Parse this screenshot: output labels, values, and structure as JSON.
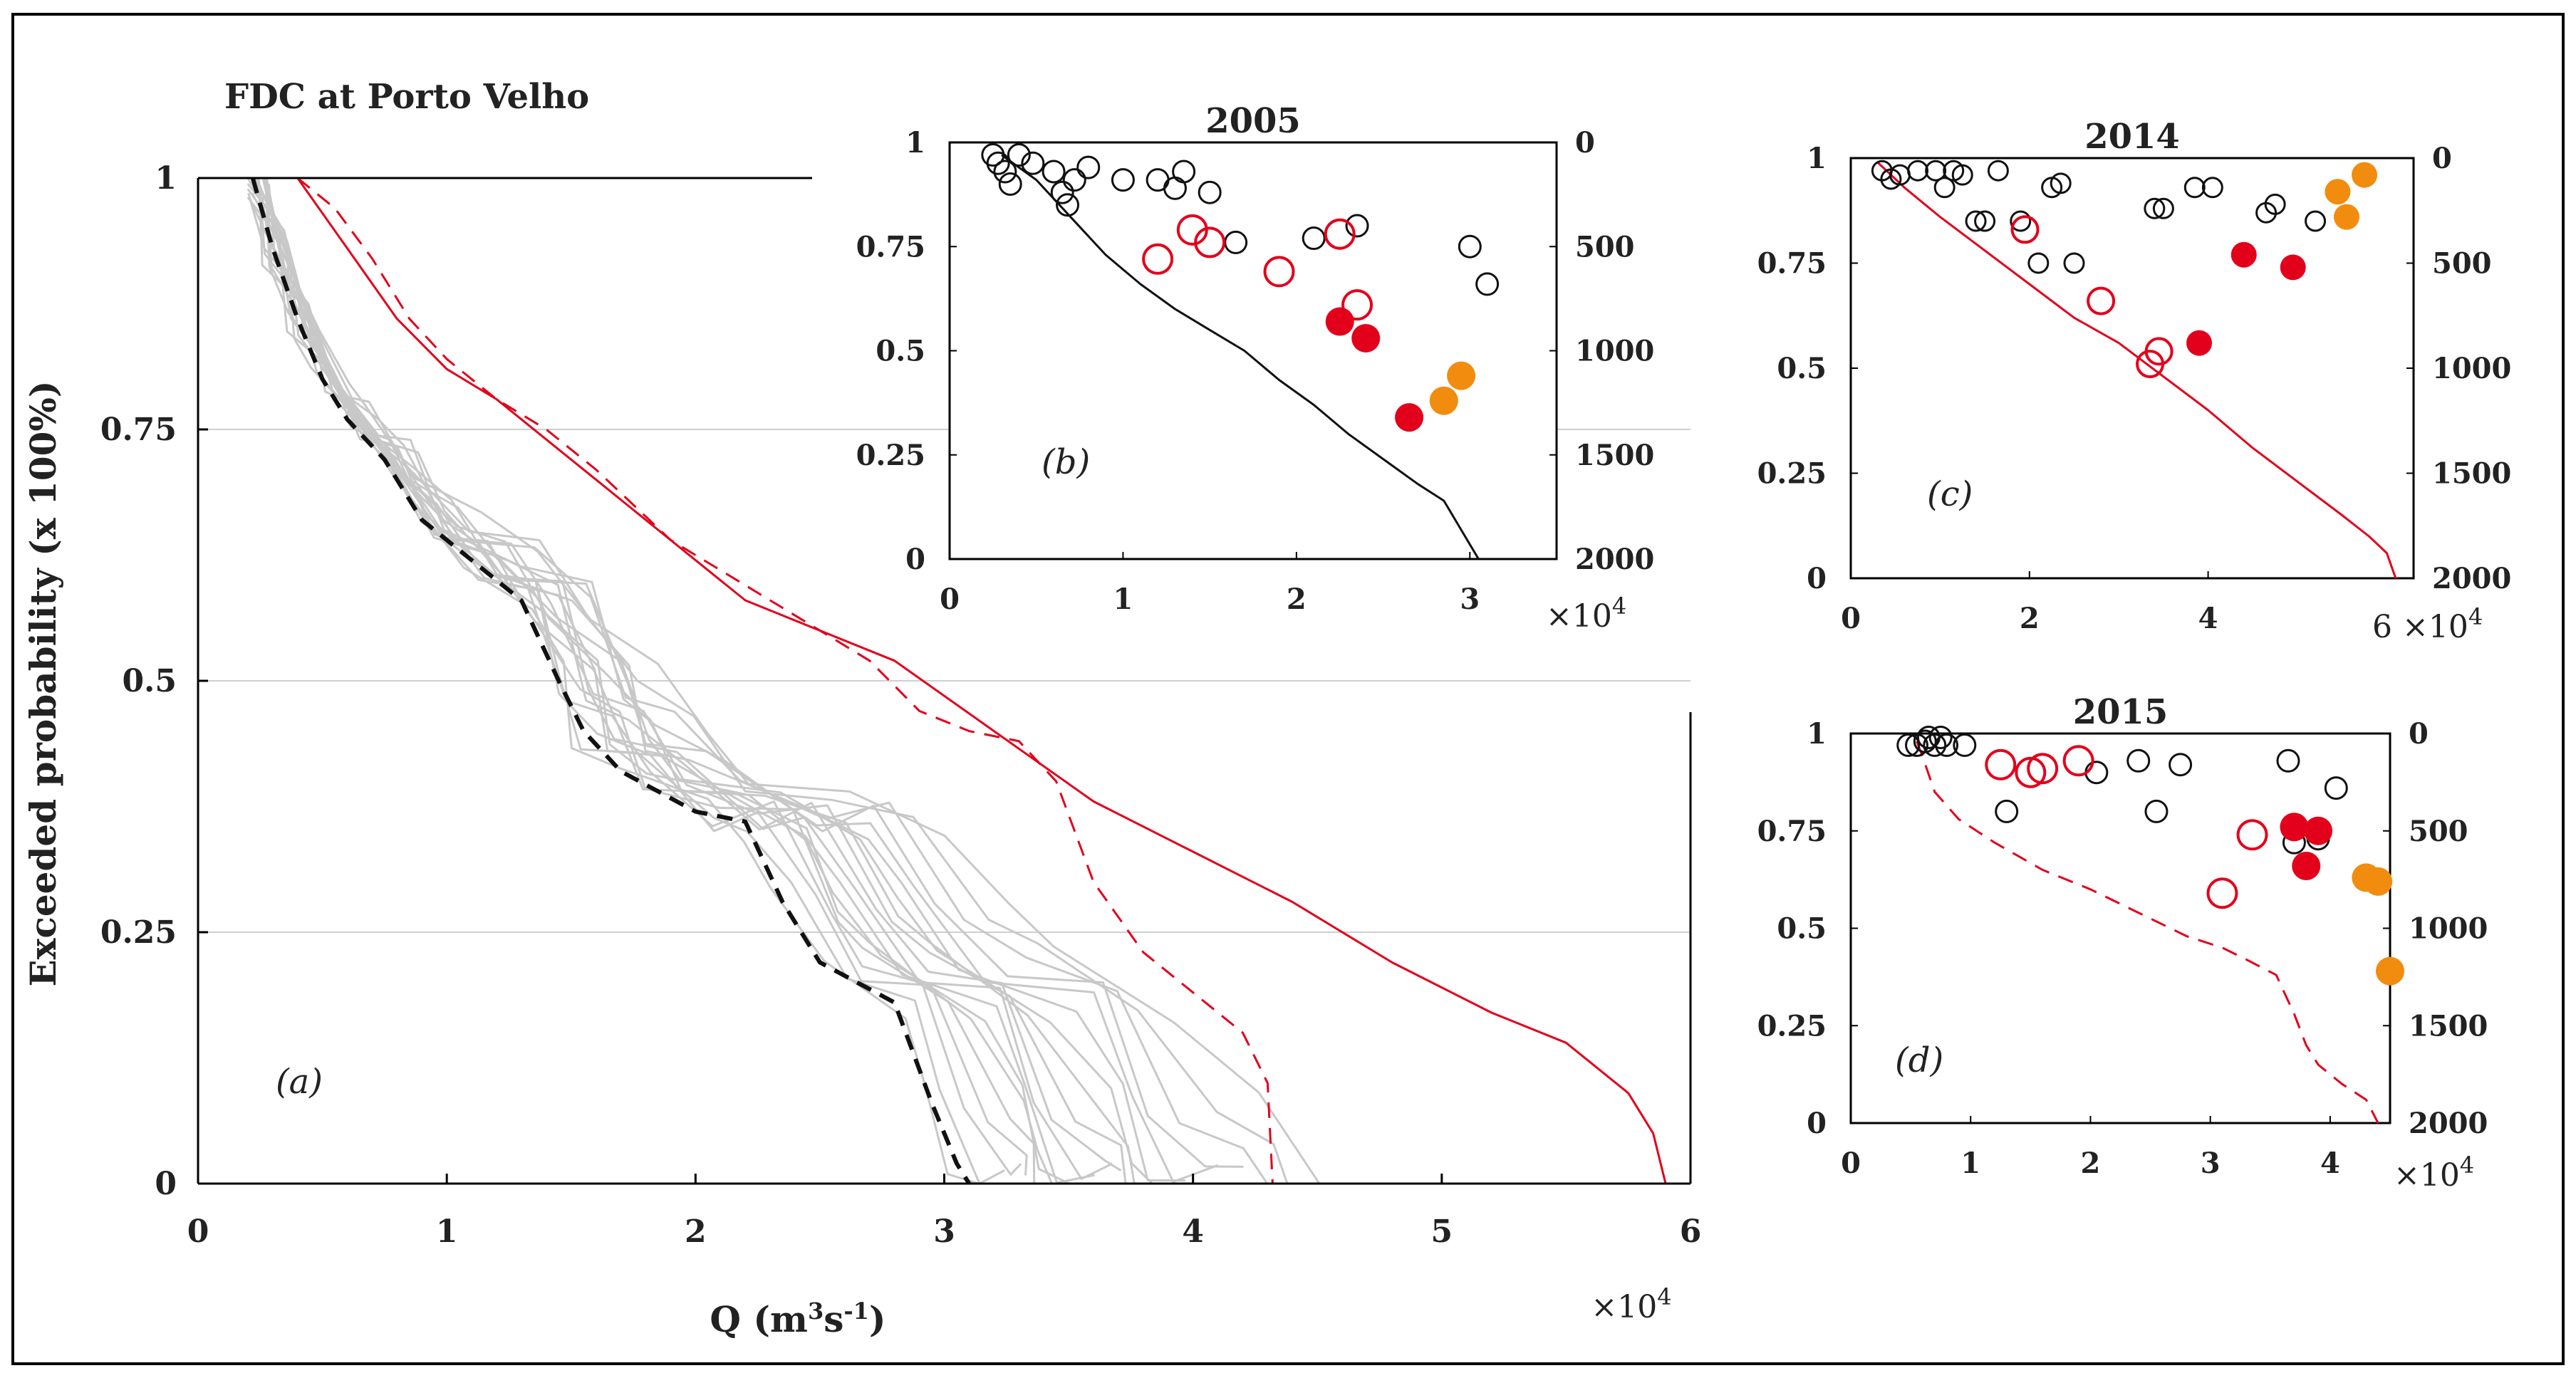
{
  "figure": {
    "title": "FDC at Porto Velho",
    "ylabel": "Exceeded probability (x 100%)",
    "xlabel_main": "Q (m",
    "xlabel_sup1": "3",
    "xlabel_mid": "s",
    "xlabel_sup2": "-1",
    "xlabel_end": ")"
  },
  "colors": {
    "red": "#e3001b",
    "orange": "#f28c0f",
    "gray": "#c8c8c8",
    "black": "#111111"
  },
  "chart_data": [
    {
      "id": "a",
      "type": "line",
      "panel_label": "(a)",
      "xlim": [
        0,
        6
      ],
      "ylim": [
        0,
        1
      ],
      "x_multiplier": "×10",
      "x_multiplier_exp": "4",
      "x_ticks": [
        0,
        1,
        2,
        3,
        4,
        5,
        6
      ],
      "x_tick_labels": [
        "0",
        "1",
        "2",
        "3",
        "4",
        "5",
        "6"
      ],
      "y_ticks": [
        0,
        0.25,
        0.5,
        0.75,
        1
      ],
      "y_tick_labels": [
        "0",
        "0.25",
        "0.5",
        "0.75",
        "1"
      ],
      "hgrid": [
        0.25,
        0.5,
        0.75
      ],
      "series": [
        {
          "name": "red-solid",
          "style": "solid",
          "color": "red",
          "x": [
            0.4,
            0.6,
            0.8,
            1.0,
            1.2,
            1.4,
            1.6,
            1.8,
            2.0,
            2.2,
            2.5,
            2.8,
            3.2,
            3.6,
            4.0,
            4.4,
            4.8,
            5.2,
            5.5,
            5.75,
            5.85,
            5.9
          ],
          "y": [
            1.0,
            0.93,
            0.86,
            0.81,
            0.78,
            0.74,
            0.7,
            0.66,
            0.62,
            0.58,
            0.55,
            0.52,
            0.45,
            0.38,
            0.33,
            0.28,
            0.22,
            0.17,
            0.14,
            0.09,
            0.05,
            0.0
          ]
        },
        {
          "name": "red-dashed",
          "style": "dashed",
          "color": "red",
          "x": [
            0.4,
            0.55,
            0.7,
            0.85,
            1.0,
            1.2,
            1.4,
            1.6,
            1.9,
            2.3,
            2.7,
            2.9,
            3.1,
            3.3,
            3.45,
            3.6,
            3.8,
            4.0,
            4.2,
            4.3,
            4.32
          ],
          "y": [
            1.0,
            0.97,
            0.92,
            0.86,
            0.82,
            0.78,
            0.75,
            0.71,
            0.64,
            0.58,
            0.52,
            0.47,
            0.45,
            0.44,
            0.4,
            0.3,
            0.23,
            0.19,
            0.15,
            0.1,
            0.0
          ]
        },
        {
          "name": "black-dashed",
          "style": "dashed",
          "color": "black",
          "x": [
            0.22,
            0.3,
            0.4,
            0.5,
            0.6,
            0.75,
            0.9,
            1.1,
            1.3,
            1.45,
            1.55,
            1.7,
            2.0,
            2.2,
            2.35,
            2.5,
            2.8,
            2.95,
            3.05,
            3.1
          ],
          "y": [
            1.0,
            0.93,
            0.86,
            0.8,
            0.76,
            0.72,
            0.66,
            0.62,
            0.58,
            0.5,
            0.45,
            0.41,
            0.37,
            0.36,
            0.28,
            0.22,
            0.18,
            0.08,
            0.02,
            0.0
          ]
        }
      ]
    },
    {
      "id": "b",
      "type": "scatter",
      "title": "2005",
      "panel_label": "(b)",
      "xlim": [
        0,
        3.5
      ],
      "ylim": [
        0,
        1
      ],
      "y2lim": [
        0,
        2000
      ],
      "x_multiplier": "×10",
      "x_multiplier_exp": "4",
      "x_ticks": [
        0,
        1,
        2,
        3
      ],
      "x_tick_labels": [
        "0",
        "1",
        "2",
        "3"
      ],
      "y_ticks": [
        0,
        0.25,
        0.5,
        0.75,
        1
      ],
      "y_tick_labels": [
        "0",
        "0.25",
        "0.5",
        "0.75",
        "1"
      ],
      "y2_ticks": [
        0,
        500,
        1000,
        1500,
        2000
      ],
      "y2_tick_labels": [
        "0",
        "500",
        "1000",
        "1500",
        "2000"
      ],
      "line": {
        "color": "black",
        "style": "solid",
        "x": [
          0.3,
          0.5,
          0.7,
          0.9,
          1.1,
          1.3,
          1.5,
          1.7,
          1.9,
          2.1,
          2.3,
          2.5,
          2.7,
          2.85,
          2.95,
          3.05
        ],
        "y": [
          0.97,
          0.91,
          0.82,
          0.73,
          0.66,
          0.6,
          0.55,
          0.5,
          0.43,
          0.37,
          0.3,
          0.24,
          0.18,
          0.14,
          0.07,
          0.0
        ]
      },
      "black_open": [
        [
          0.25,
          0.97
        ],
        [
          0.28,
          0.95
        ],
        [
          0.32,
          0.93
        ],
        [
          0.35,
          0.9
        ],
        [
          0.4,
          0.97
        ],
        [
          0.48,
          0.95
        ],
        [
          0.6,
          0.93
        ],
        [
          0.65,
          0.88
        ],
        [
          0.68,
          0.85
        ],
        [
          0.72,
          0.91
        ],
        [
          0.8,
          0.94
        ],
        [
          1.0,
          0.91
        ],
        [
          1.2,
          0.91
        ],
        [
          1.3,
          0.89
        ],
        [
          1.35,
          0.93
        ],
        [
          1.5,
          0.88
        ],
        [
          1.65,
          0.76
        ],
        [
          2.1,
          0.77
        ],
        [
          2.35,
          0.8
        ],
        [
          3.0,
          0.75
        ],
        [
          3.1,
          0.66
        ]
      ],
      "red_open": [
        [
          1.2,
          0.72
        ],
        [
          1.4,
          0.79
        ],
        [
          1.5,
          0.76
        ],
        [
          1.9,
          0.69
        ],
        [
          2.25,
          0.78
        ],
        [
          2.35,
          0.61
        ]
      ],
      "red_filled": [
        [
          2.25,
          0.57
        ],
        [
          2.4,
          0.53
        ],
        [
          2.65,
          0.34
        ]
      ],
      "orange_filled": [
        [
          2.85,
          0.38
        ],
        [
          2.95,
          0.44
        ]
      ]
    },
    {
      "id": "c",
      "type": "scatter",
      "title": "2014",
      "panel_label": "(c)",
      "xlim": [
        0,
        6.3
      ],
      "ylim": [
        0,
        1
      ],
      "y2lim": [
        0,
        2000
      ],
      "x_multiplier": "6 ×10",
      "x_multiplier_exp": "4",
      "x_ticks": [
        0,
        2,
        4
      ],
      "x_tick_labels": [
        "0",
        "2",
        "4"
      ],
      "y_ticks": [
        0,
        0.25,
        0.5,
        0.75,
        1
      ],
      "y_tick_labels": [
        "0",
        "0.25",
        "0.5",
        "0.75",
        "1"
      ],
      "y2_ticks": [
        0,
        500,
        1000,
        1500,
        2000
      ],
      "y2_tick_labels": [
        "0",
        "500",
        "1000",
        "1500",
        "2000"
      ],
      "line": {
        "color": "red",
        "style": "solid",
        "x": [
          0.3,
          0.6,
          1.0,
          1.5,
          2.0,
          2.5,
          3.0,
          3.5,
          4.0,
          4.5,
          5.0,
          5.5,
          5.8,
          6.0,
          6.1
        ],
        "y": [
          0.99,
          0.93,
          0.86,
          0.78,
          0.7,
          0.62,
          0.56,
          0.48,
          0.4,
          0.31,
          0.23,
          0.15,
          0.1,
          0.06,
          0.0
        ]
      },
      "black_open": [
        [
          0.35,
          0.97
        ],
        [
          0.45,
          0.95
        ],
        [
          0.55,
          0.96
        ],
        [
          0.75,
          0.97
        ],
        [
          0.95,
          0.97
        ],
        [
          1.05,
          0.93
        ],
        [
          1.15,
          0.97
        ],
        [
          1.25,
          0.96
        ],
        [
          1.4,
          0.85
        ],
        [
          1.5,
          0.85
        ],
        [
          1.65,
          0.97
        ],
        [
          1.9,
          0.85
        ],
        [
          2.1,
          0.75
        ],
        [
          2.25,
          0.93
        ],
        [
          2.35,
          0.94
        ],
        [
          2.5,
          0.75
        ],
        [
          3.4,
          0.88
        ],
        [
          3.5,
          0.88
        ],
        [
          3.85,
          0.93
        ],
        [
          4.05,
          0.93
        ],
        [
          4.65,
          0.87
        ],
        [
          4.75,
          0.89
        ],
        [
          5.2,
          0.85
        ]
      ],
      "red_open": [
        [
          1.95,
          0.83
        ],
        [
          2.8,
          0.66
        ],
        [
          3.35,
          0.51
        ],
        [
          3.45,
          0.54
        ]
      ],
      "red_filled": [
        [
          3.9,
          0.56
        ],
        [
          4.4,
          0.77
        ],
        [
          4.95,
          0.74
        ]
      ],
      "orange_filled": [
        [
          5.45,
          0.92
        ],
        [
          5.55,
          0.86
        ],
        [
          5.75,
          0.96
        ]
      ]
    },
    {
      "id": "d",
      "type": "scatter",
      "title": "2015",
      "panel_label": "(d)",
      "xlim": [
        0,
        4.5
      ],
      "ylim": [
        0,
        1
      ],
      "y2lim": [
        0,
        2000
      ],
      "x_multiplier": "×10",
      "x_multiplier_exp": "4",
      "x_ticks": [
        0,
        1,
        2,
        3,
        4
      ],
      "x_tick_labels": [
        "0",
        "1",
        "2",
        "3",
        "4"
      ],
      "y_ticks": [
        0,
        0.25,
        0.5,
        0.75,
        1
      ],
      "y_tick_labels": [
        "0",
        "0.25",
        "0.5",
        "0.75",
        "1"
      ],
      "y2_ticks": [
        0,
        500,
        1000,
        1500,
        2000
      ],
      "y2_tick_labels": [
        "0",
        "500",
        "1000",
        "1500",
        "2000"
      ],
      "line": {
        "color": "red",
        "style": "dashed",
        "x": [
          0.55,
          0.6,
          0.7,
          0.9,
          1.2,
          1.6,
          2.0,
          2.4,
          2.8,
          3.1,
          3.3,
          3.55,
          3.7,
          3.8,
          3.9,
          4.1,
          4.3,
          4.4
        ],
        "y": [
          0.98,
          0.94,
          0.85,
          0.78,
          0.72,
          0.65,
          0.6,
          0.54,
          0.48,
          0.45,
          0.42,
          0.38,
          0.28,
          0.2,
          0.15,
          0.1,
          0.06,
          0.0
        ]
      },
      "black_open": [
        [
          0.48,
          0.97
        ],
        [
          0.55,
          0.97
        ],
        [
          0.62,
          0.98
        ],
        [
          0.65,
          0.99
        ],
        [
          0.7,
          0.97
        ],
        [
          0.75,
          0.99
        ],
        [
          0.8,
          0.97
        ],
        [
          0.95,
          0.97
        ],
        [
          1.3,
          0.8
        ],
        [
          2.05,
          0.9
        ],
        [
          2.4,
          0.93
        ],
        [
          2.55,
          0.8
        ],
        [
          2.75,
          0.92
        ],
        [
          3.65,
          0.93
        ],
        [
          3.7,
          0.72
        ],
        [
          3.9,
          0.73
        ],
        [
          4.05,
          0.86
        ]
      ],
      "red_open": [
        [
          1.25,
          0.92
        ],
        [
          1.5,
          0.9
        ],
        [
          1.6,
          0.91
        ],
        [
          1.9,
          0.93
        ],
        [
          3.1,
          0.59
        ],
        [
          3.35,
          0.74
        ]
      ],
      "red_filled": [
        [
          3.7,
          0.76
        ],
        [
          3.8,
          0.66
        ],
        [
          3.9,
          0.75
        ]
      ],
      "orange_filled": [
        [
          4.3,
          0.63
        ],
        [
          4.4,
          0.62
        ],
        [
          4.5,
          0.39
        ]
      ]
    }
  ]
}
